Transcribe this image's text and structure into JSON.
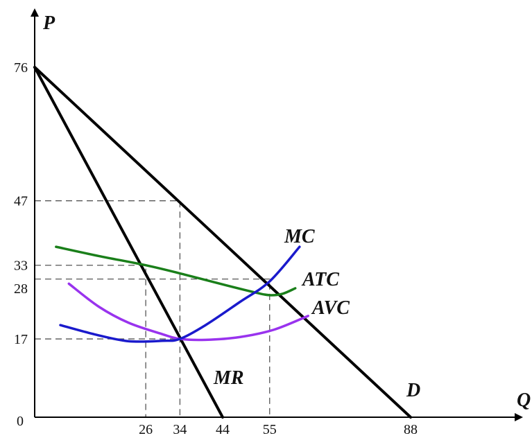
{
  "chart_data": {
    "type": "line",
    "title": "",
    "xlabel": "Q",
    "ylabel": "P",
    "xlim": [
      0,
      110
    ],
    "ylim": [
      0,
      90
    ],
    "x_ticks": [
      {
        "value": 0,
        "label": "0"
      },
      {
        "value": 26,
        "label": "26"
      },
      {
        "value": 34,
        "label": "34"
      },
      {
        "value": 44,
        "label": "44"
      },
      {
        "value": 55,
        "label": "55"
      },
      {
        "value": 88,
        "label": "88"
      }
    ],
    "y_ticks": [
      {
        "value": 76,
        "label": "76"
      },
      {
        "value": 47,
        "label": "47"
      },
      {
        "value": 33,
        "label": "33"
      },
      {
        "value": 28,
        "label": "28"
      },
      {
        "value": 17,
        "label": "17"
      }
    ],
    "series": [
      {
        "name": "D",
        "color": "#000000",
        "points": [
          [
            0,
            76
          ],
          [
            88,
            0
          ]
        ]
      },
      {
        "name": "MR",
        "color": "#000000",
        "points": [
          [
            0,
            76
          ],
          [
            44,
            0
          ]
        ]
      },
      {
        "name": "ATC",
        "color": "#1a7f1a",
        "points": [
          [
            5,
            37
          ],
          [
            15,
            35
          ],
          [
            26,
            33
          ],
          [
            35,
            31
          ],
          [
            45,
            28.6
          ],
          [
            52,
            27
          ],
          [
            55,
            26.5
          ],
          [
            58,
            26.8
          ],
          [
            61,
            28
          ]
        ]
      },
      {
        "name": "AVC",
        "color": "#9933ee",
        "points": [
          [
            8,
            29
          ],
          [
            15,
            24
          ],
          [
            22,
            20.5
          ],
          [
            30,
            18
          ],
          [
            34,
            17
          ],
          [
            40,
            16.8
          ],
          [
            48,
            17.4
          ],
          [
            56,
            19
          ],
          [
            64,
            22
          ]
        ]
      },
      {
        "name": "MC",
        "color": "#1a1acc",
        "points": [
          [
            6,
            20
          ],
          [
            14,
            18
          ],
          [
            22,
            16.5
          ],
          [
            30,
            16.6
          ],
          [
            34,
            17
          ],
          [
            40,
            20
          ],
          [
            48,
            25
          ],
          [
            55,
            29.5
          ],
          [
            62,
            37
          ]
        ]
      }
    ],
    "guides": [
      {
        "points": [
          [
            0,
            47
          ],
          [
            34,
            47
          ],
          [
            34,
            0
          ]
        ]
      },
      {
        "points": [
          [
            0,
            33
          ],
          [
            26,
            33
          ],
          [
            26,
            0
          ]
        ]
      },
      {
        "points": [
          [
            0,
            30
          ],
          [
            55,
            30
          ],
          [
            55,
            0
          ]
        ]
      },
      {
        "points": [
          [
            0,
            17
          ],
          [
            34,
            17
          ]
        ]
      }
    ],
    "curve_labels": {
      "MC": "MC",
      "ATC": "ATC",
      "AVC": "AVC",
      "MR": "MR",
      "D": "D"
    },
    "grid": false,
    "legend": "none"
  }
}
